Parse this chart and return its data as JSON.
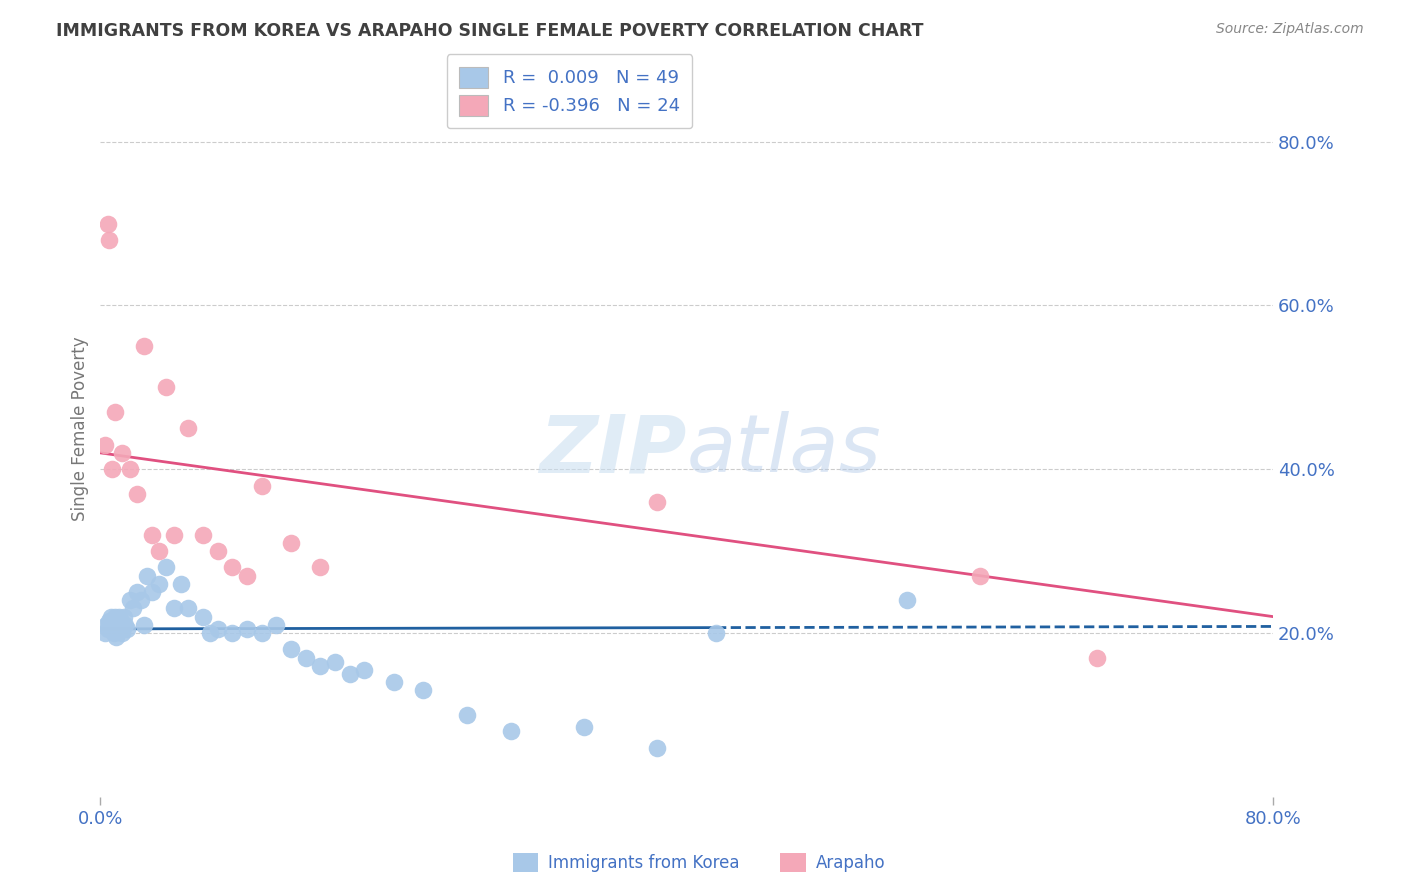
{
  "title": "IMMIGRANTS FROM KOREA VS ARAPAHO SINGLE FEMALE POVERTY CORRELATION CHART",
  "source": "Source: ZipAtlas.com",
  "ylabel": "Single Female Poverty",
  "legend_label1": "Immigrants from Korea",
  "legend_label2": "Arapaho",
  "legend_r1": "R =  0.009",
  "legend_n1": "N = 49",
  "legend_r2": "R = -0.396",
  "legend_n2": "N = 24",
  "blue_color": "#a8c8e8",
  "pink_color": "#f4a8b8",
  "blue_line_color": "#2060a0",
  "pink_line_color": "#e05080",
  "axis_label_color": "#4472c4",
  "title_color": "#404040",
  "source_color": "#888888",
  "xmin": 0.0,
  "xmax": 80.0,
  "ymin": 0.0,
  "ymax": 90.0,
  "right_yticks": [
    0.0,
    20.0,
    40.0,
    60.0,
    80.0
  ],
  "right_yticklabels": [
    "",
    "20.0%",
    "40.0%",
    "60.0%",
    "80.0%"
  ],
  "korea_x": [
    0.3,
    0.4,
    0.5,
    0.6,
    0.7,
    0.8,
    0.9,
    1.0,
    1.1,
    1.2,
    1.3,
    1.4,
    1.5,
    1.6,
    1.7,
    1.8,
    2.0,
    2.2,
    2.5,
    2.8,
    3.0,
    3.2,
    3.5,
    4.0,
    4.5,
    5.0,
    5.5,
    6.0,
    7.0,
    7.5,
    8.0,
    9.0,
    10.0,
    11.0,
    12.0,
    13.0,
    14.0,
    15.0,
    16.0,
    17.0,
    18.0,
    20.0,
    22.0,
    25.0,
    28.0,
    33.0,
    38.0,
    42.0,
    55.0
  ],
  "korea_y": [
    20.0,
    21.0,
    20.5,
    21.5,
    22.0,
    21.0,
    20.0,
    22.0,
    19.5,
    21.0,
    22.0,
    21.5,
    20.0,
    22.0,
    21.0,
    20.5,
    24.0,
    23.0,
    25.0,
    24.0,
    21.0,
    27.0,
    25.0,
    26.0,
    28.0,
    23.0,
    26.0,
    23.0,
    22.0,
    20.0,
    20.5,
    20.0,
    20.5,
    20.0,
    21.0,
    18.0,
    17.0,
    16.0,
    16.5,
    15.0,
    15.5,
    14.0,
    13.0,
    10.0,
    8.0,
    8.5,
    6.0,
    20.0,
    24.0
  ],
  "arapaho_x": [
    0.3,
    0.5,
    0.6,
    0.8,
    1.0,
    1.5,
    2.0,
    2.5,
    3.0,
    3.5,
    4.0,
    4.5,
    5.0,
    6.0,
    7.0,
    8.0,
    9.0,
    10.0,
    11.0,
    13.0,
    15.0,
    38.0,
    60.0,
    68.0
  ],
  "arapaho_y": [
    43.0,
    70.0,
    68.0,
    40.0,
    47.0,
    42.0,
    40.0,
    37.0,
    55.0,
    32.0,
    30.0,
    50.0,
    32.0,
    45.0,
    32.0,
    30.0,
    28.0,
    27.0,
    38.0,
    31.0,
    28.0,
    36.0,
    27.0,
    17.0
  ],
  "korea_solid_end_x": 42.0,
  "arapaho_line_start_y": 42.0,
  "arapaho_line_end_y": 22.0
}
